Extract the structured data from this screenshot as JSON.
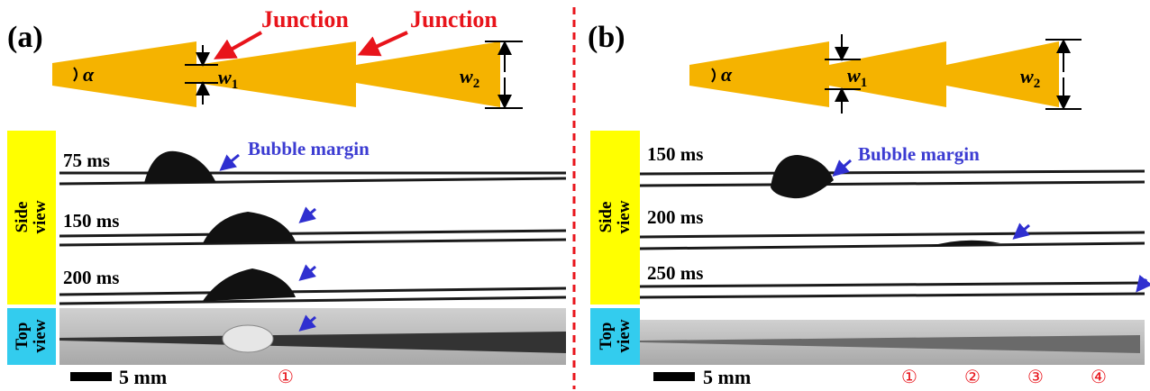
{
  "panels": [
    {
      "label": "(a)",
      "junctions": [
        "Junction",
        "Junction"
      ],
      "alpha": "α",
      "w1": {
        "base": "w",
        "sub": "1"
      },
      "w2": {
        "base": "w",
        "sub": "2"
      },
      "times": [
        "75 ms",
        "150 ms",
        "200 ms"
      ],
      "annotation": "Bubble margin",
      "side_view": [
        "Side",
        "view"
      ],
      "top_view": [
        "Top",
        "view"
      ],
      "scale_bar": "5 mm",
      "markers": [
        "①"
      ]
    },
    {
      "label": "(b)",
      "alpha": "α",
      "w1": {
        "base": "w",
        "sub": "1"
      },
      "w2": {
        "base": "w",
        "sub": "2"
      },
      "times": [
        "150 ms",
        "200 ms",
        "250 ms"
      ],
      "annotation": "Bubble margin",
      "side_view": [
        "Side",
        "view"
      ],
      "top_view": [
        "Top",
        "view"
      ],
      "scale_bar": "5 mm",
      "markers": [
        "①",
        "②",
        "③",
        "④"
      ]
    }
  ]
}
